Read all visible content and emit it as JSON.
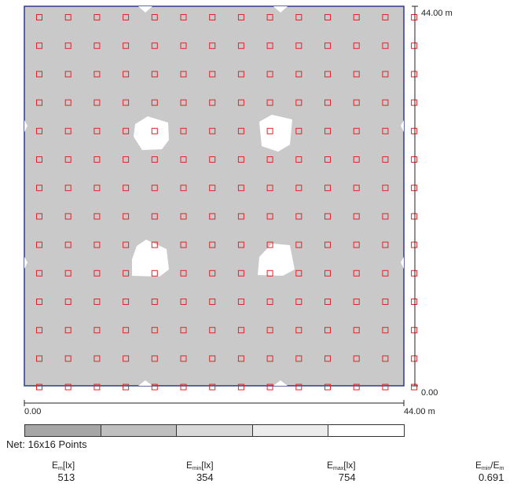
{
  "scale": {
    "y_top": "44.00 m",
    "y_bottom": "0.00",
    "x_left": "0.00",
    "x_right": "44.00 m"
  },
  "grid": {
    "cols": 14,
    "rows": 14
  },
  "net": {
    "label": "Net: 16x16 Points"
  },
  "legend": {
    "colors": [
      "#a6a6a6",
      "#bfbfbf",
      "#d9d9d9",
      "#ececec",
      "#ffffff"
    ]
  },
  "colors": {
    "floor": "#c9c9c9",
    "border": "#2e3a8c",
    "marker": "#e2232a",
    "bright": "#ffffff"
  },
  "stats": {
    "em": {
      "symbol": "E",
      "sub": "m",
      "unit": "[lx]",
      "value": "513"
    },
    "emin": {
      "symbol": "E",
      "sub": "min",
      "unit": "[lx]",
      "value": "354"
    },
    "emax": {
      "symbol": "E",
      "sub": "max",
      "unit": "[lx]",
      "value": "754"
    },
    "ratio": {
      "symbol": "E",
      "sub1": "min",
      "slash": "/E",
      "sub2": "m",
      "value": "0.691"
    }
  }
}
